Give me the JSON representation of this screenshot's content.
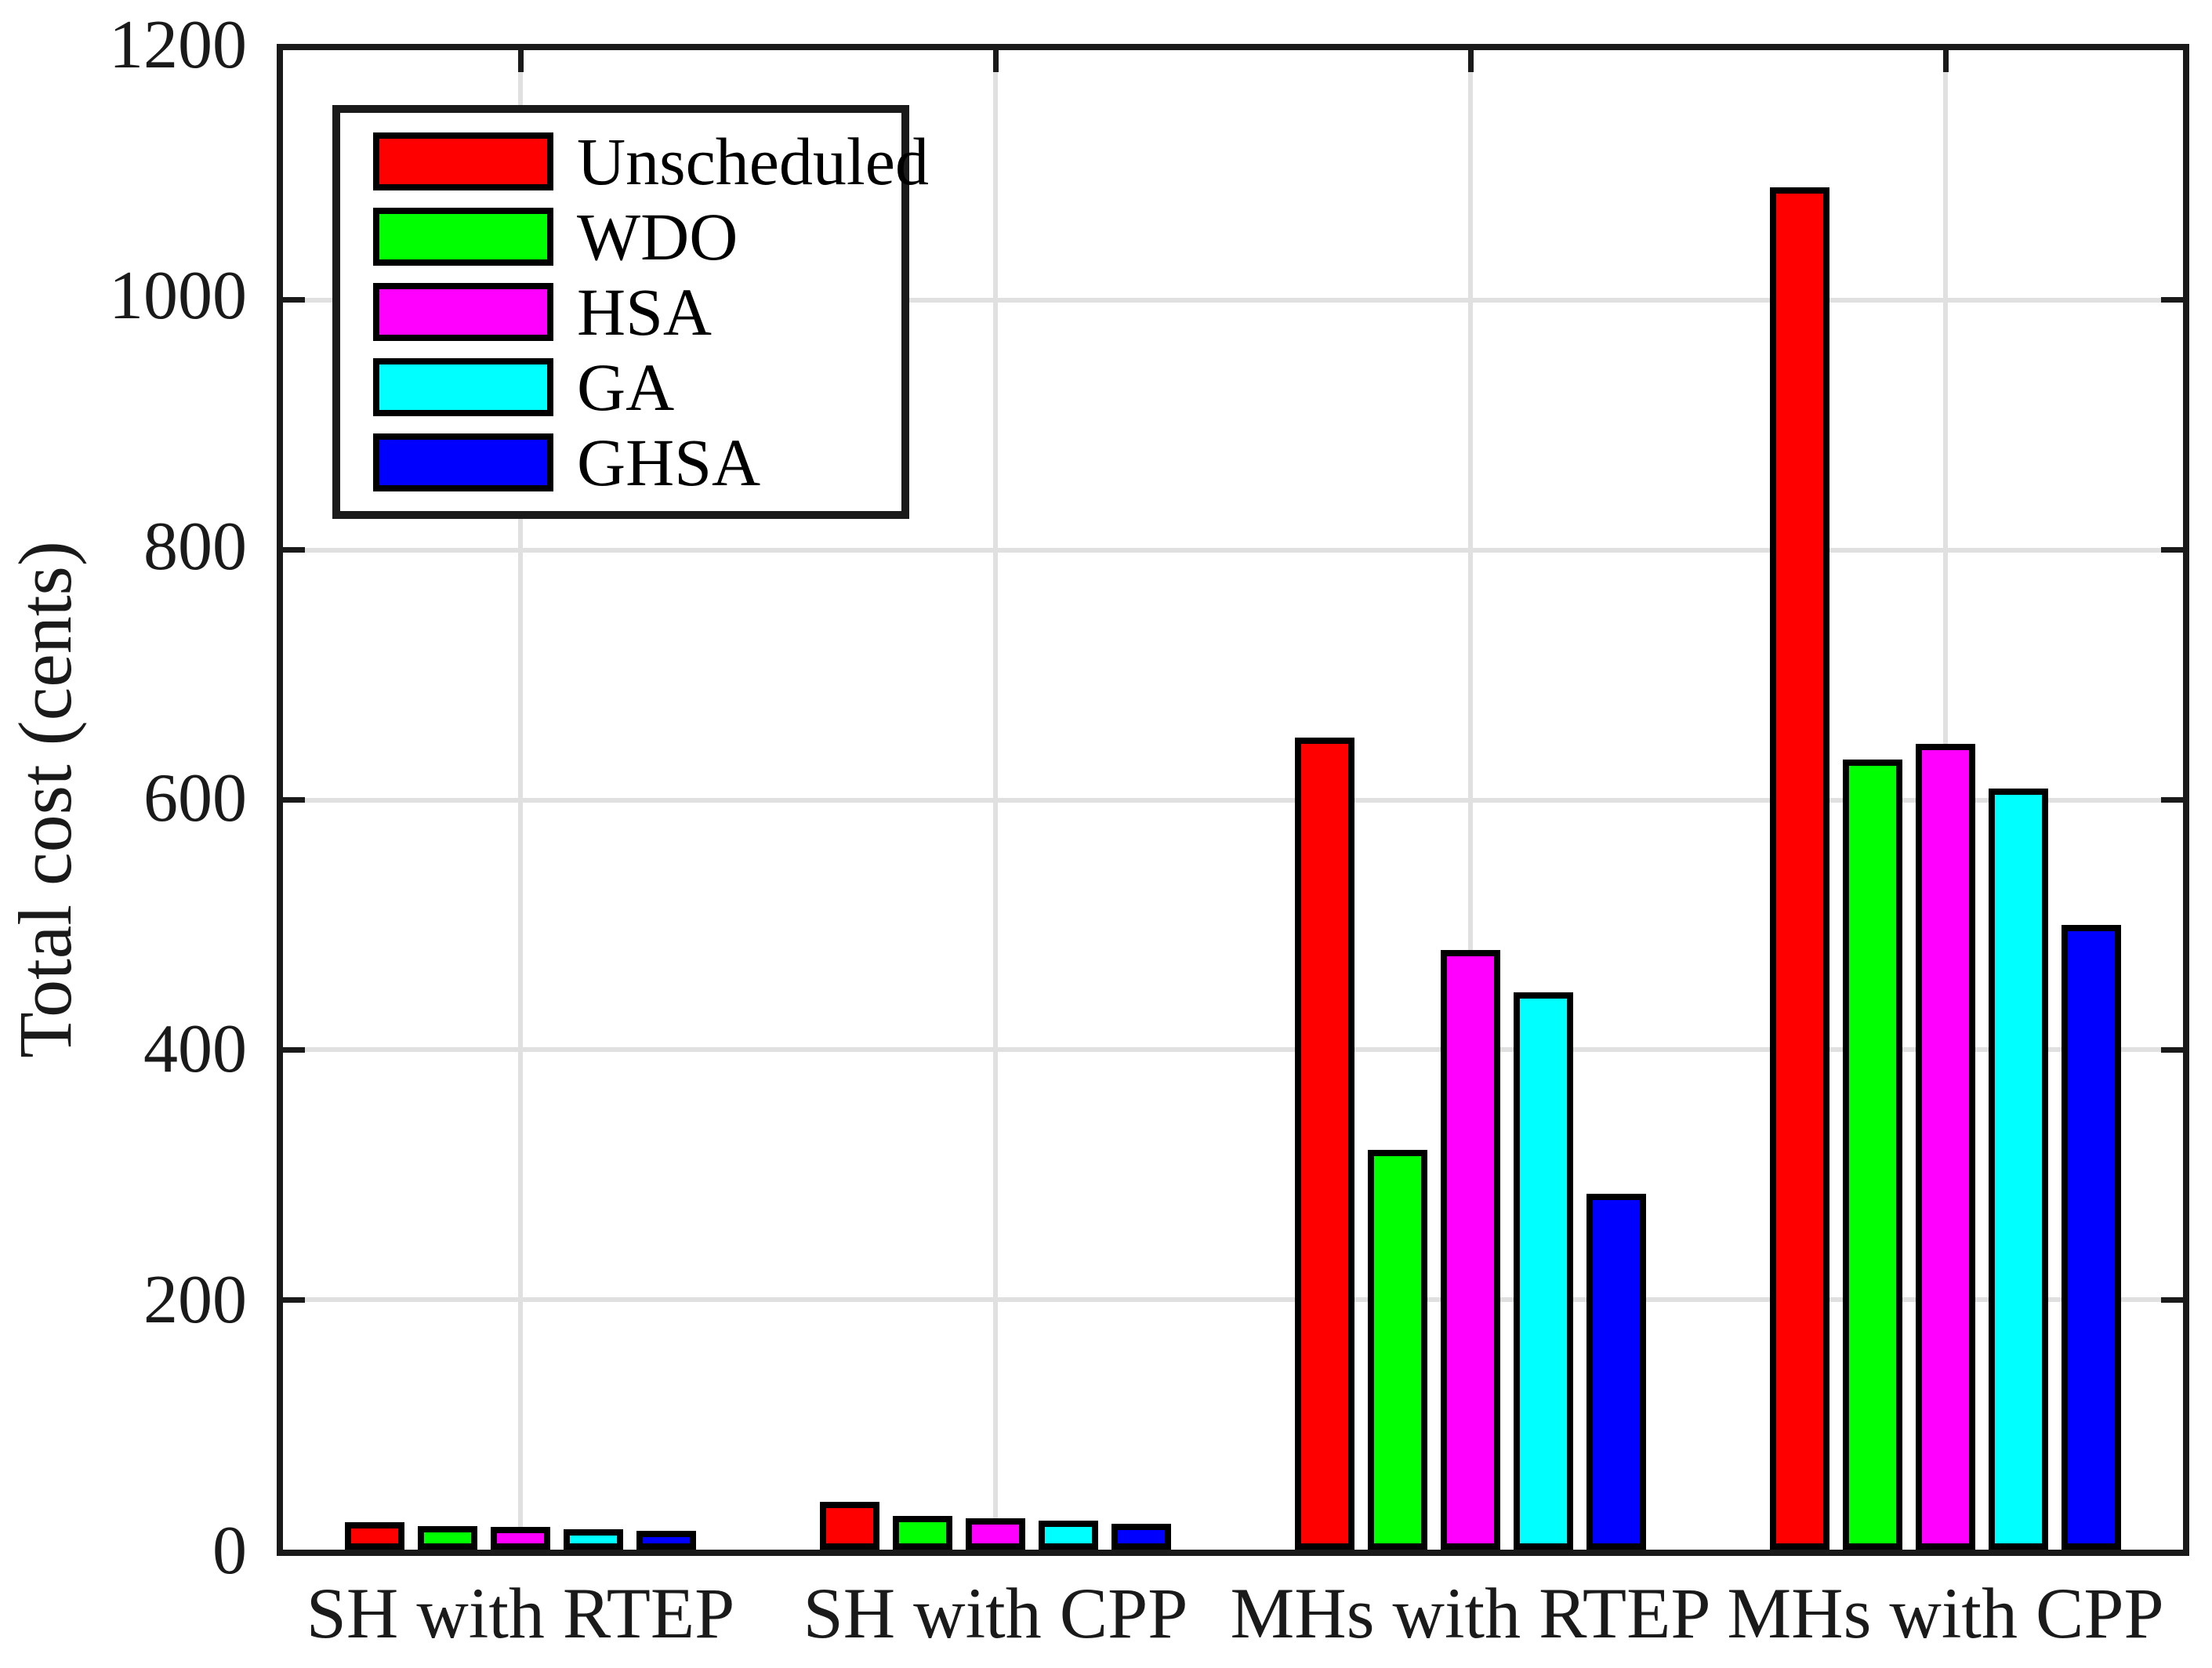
{
  "chart_data": {
    "type": "bar",
    "title": "",
    "xlabel": "",
    "ylabel": "Total cost (cents)",
    "ylim": [
      0,
      1200
    ],
    "yticks": [
      0,
      200,
      400,
      600,
      800,
      1000,
      1200
    ],
    "grid": true,
    "legend_position": "top-left",
    "categories": [
      "SH with RTEP",
      "SH with CPP",
      "MHs with RTEP",
      "MHs with CPP"
    ],
    "series": [
      {
        "name": "Unscheduled",
        "color": "#ff0000",
        "values": [
          22,
          38,
          650,
          1090
        ]
      },
      {
        "name": "WDO",
        "color": "#00ff00",
        "values": [
          19,
          27,
          320,
          632
        ]
      },
      {
        "name": "HSA",
        "color": "#ff00ff",
        "values": [
          18,
          25,
          480,
          645
        ]
      },
      {
        "name": "GA",
        "color": "#00ffff",
        "values": [
          16,
          23,
          446,
          609
        ]
      },
      {
        "name": "GHSA",
        "color": "#0000ff",
        "values": [
          15,
          21,
          285,
          500
        ]
      }
    ]
  },
  "style_colors": {
    "axis": "#1a1a1a",
    "grid": "#e0e0e0",
    "bar_border": "#000000",
    "background": "#ffffff"
  }
}
